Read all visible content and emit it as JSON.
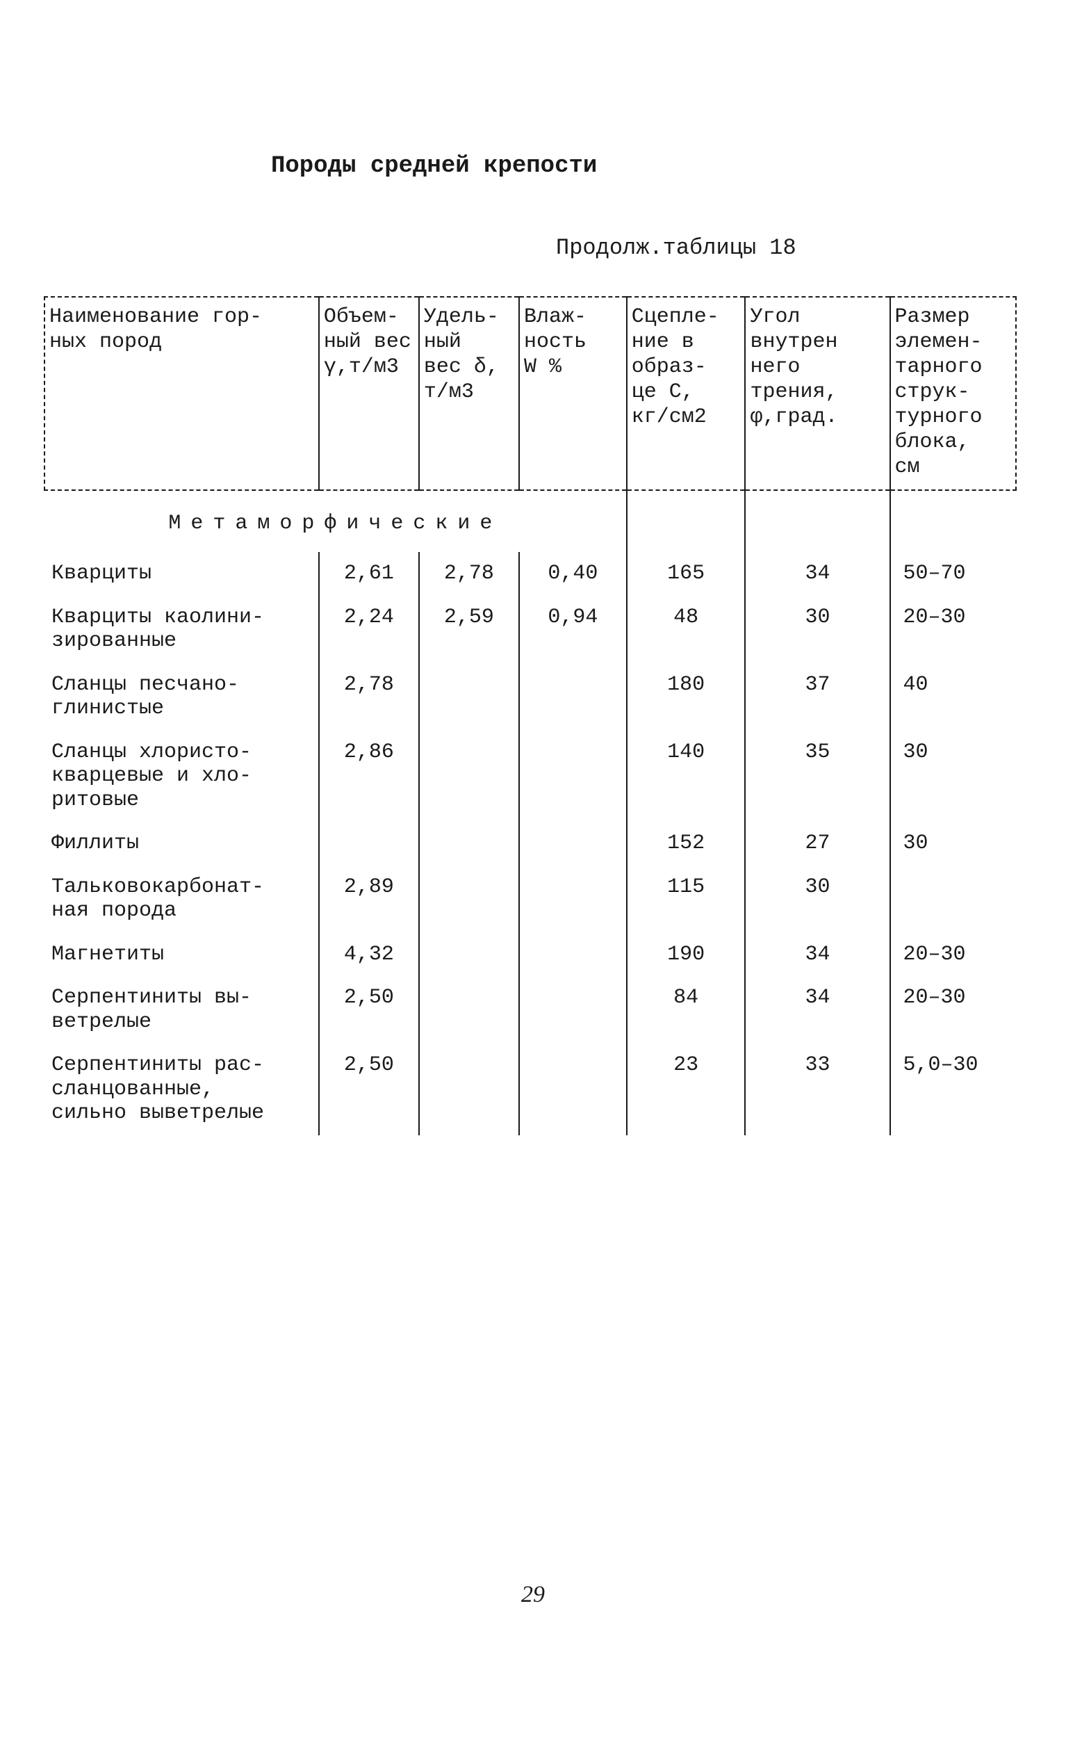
{
  "title": "Породы средней крепости",
  "continuation": "Продолж.таблицы 18",
  "table": {
    "headers": [
      "Наименование гор-\nных пород",
      "Объем-\nный вес\nγ,т/м3",
      "Удель-\nный\nвес δ,\nт/м3",
      "Влаж-\nность\nW %",
      "Сцепле-\nние в\nобраз-\nце С,\nкг/см2",
      "Угол\nвнутрен\nнего\nтрения,\nφ,град.",
      "Размер\nэлемен-\nтарного\nструк-\nтурного\nблока,\nсм"
    ],
    "section_title": "Метаморфические",
    "rows": [
      {
        "name": "Кварциты",
        "c1": "2,61",
        "c2": "2,78",
        "c3": "0,40",
        "c4": "165",
        "c5": "34",
        "c6": "50–70"
      },
      {
        "name": "Кварциты каолини-\nзированные",
        "c1": "2,24",
        "c2": "2,59",
        "c3": "0,94",
        "c4": "48",
        "c5": "30",
        "c6": "20–30"
      },
      {
        "name": "Сланцы песчано-\nглинистые",
        "c1": "2,78",
        "c2": "",
        "c3": "",
        "c4": "180",
        "c5": "37",
        "c6": "40"
      },
      {
        "name": "Сланцы хлористо-\nкварцевые и хло-\nритовые",
        "c1": "2,86",
        "c2": "",
        "c3": "",
        "c4": "140",
        "c5": "35",
        "c6": "30"
      },
      {
        "name": "Филлиты",
        "c1": "",
        "c2": "",
        "c3": "",
        "c4": "152",
        "c5": "27",
        "c6": "30"
      },
      {
        "name": "Тальковокарбонат-\nная порода",
        "c1": "2,89",
        "c2": "",
        "c3": "",
        "c4": "115",
        "c5": "30",
        "c6": ""
      },
      {
        "name": "Магнетиты",
        "c1": "4,32",
        "c2": "",
        "c3": "",
        "c4": "190",
        "c5": "34",
        "c6": "20–30"
      },
      {
        "name": "Серпентиниты вы-\nветрелые",
        "c1": "2,50",
        "c2": "",
        "c3": "",
        "c4": "84",
        "c5": "34",
        "c6": "20–30"
      },
      {
        "name": "Серпентиниты рас-\nсланцованные,\nсильно выветрелые",
        "c1": "2,50",
        "c2": "",
        "c3": "",
        "c4": "23",
        "c5": "33",
        "c6": "5,0–30"
      }
    ]
  },
  "page_number": "29",
  "style": {
    "background_color": "#ffffff",
    "text_color": "#1a1a1a",
    "font_family": "Courier New",
    "title_fontsize": 34,
    "body_fontsize": 30,
    "border_color": "#1a1a1a",
    "border_dash": "dashed"
  }
}
